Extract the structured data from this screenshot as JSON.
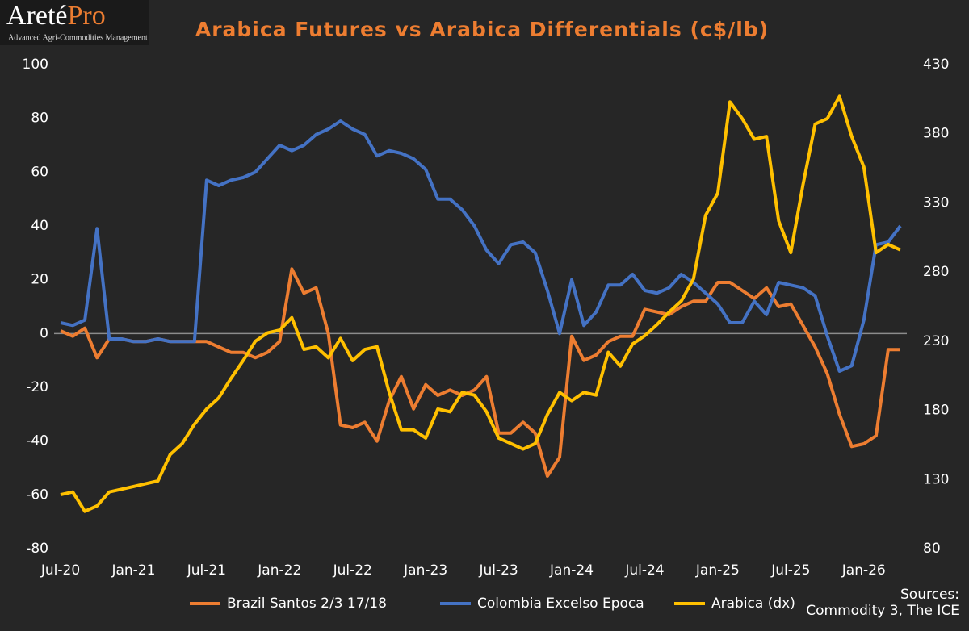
{
  "logo": {
    "name": [
      "Areté",
      "Pro"
    ],
    "tagline": "Advanced Agri-Commodities Management"
  },
  "chart_data": {
    "type": "line",
    "title": "Arabica Futures vs Arabica Differentials (c$/lb)",
    "sources": [
      "Sources:",
      "Commodity 3, The ICE"
    ],
    "categories": [
      "Jul-20",
      null,
      null,
      null,
      null,
      null,
      "Jan-21",
      null,
      null,
      null,
      null,
      null,
      "Jul-21",
      null,
      null,
      null,
      null,
      null,
      "Jan-22",
      null,
      null,
      null,
      null,
      null,
      "Jul-22",
      null,
      null,
      null,
      null,
      null,
      "Jan-23",
      null,
      null,
      null,
      null,
      null,
      "Jul-23",
      null,
      null,
      null,
      null,
      null,
      "Jan-24",
      null,
      null,
      null,
      null,
      null,
      "Jul-24",
      null,
      null,
      null,
      null,
      null,
      "Jan-25",
      null,
      null,
      null,
      null,
      null,
      "Jul-25",
      null,
      null,
      null,
      null,
      null,
      "Jan-26",
      null,
      null,
      null
    ],
    "ylim": [
      -80,
      100
    ],
    "yticks": [
      -80,
      -60,
      -40,
      -20,
      0,
      20,
      40,
      60,
      80,
      100
    ],
    "y2lim": [
      80,
      430
    ],
    "y2ticks": [
      80,
      130,
      180,
      230,
      280,
      330,
      380,
      430
    ],
    "grid": false,
    "legend": "bottom",
    "series": [
      {
        "name": "Brazil Santos 2/3 17/18",
        "color": "#ed7d31",
        "values": [
          1,
          -1,
          2,
          -9,
          -2,
          -2,
          -3,
          -3,
          -2,
          -3,
          -3,
          -3,
          -3,
          -5,
          -7,
          -7,
          -9,
          -7,
          -3,
          24,
          15,
          17,
          0,
          -34,
          -35,
          -33,
          -40,
          -25,
          -16,
          -28,
          -19,
          -23,
          -21,
          -23,
          -21,
          -16,
          -37,
          -37,
          -33,
          -37,
          -53,
          -46,
          -1,
          -10,
          -8,
          -3,
          -1,
          -1,
          9,
          8,
          7,
          10,
          12,
          12,
          19,
          19,
          16,
          13,
          17,
          10,
          11,
          3,
          -5,
          -15,
          -30,
          -42,
          -41,
          -38,
          -6,
          -6
        ]
      },
      {
        "name": "Colombia Excelso Epoca",
        "color": "#4472c4",
        "values": [
          4,
          3,
          5,
          39,
          -2,
          -2,
          -3,
          -3,
          -2,
          -3,
          -3,
          -3,
          57,
          55,
          57,
          58,
          60,
          65,
          70,
          68,
          70,
          74,
          76,
          79,
          76,
          74,
          66,
          68,
          67,
          65,
          61,
          50,
          50,
          46,
          40,
          31,
          26,
          33,
          34,
          30,
          16,
          0,
          20,
          3,
          8,
          18,
          18,
          22,
          16,
          15,
          17,
          22,
          19,
          15,
          11,
          4,
          4,
          12,
          7,
          19,
          18,
          17,
          14,
          -1,
          -14,
          -12,
          5,
          33,
          34,
          40
        ]
      },
      {
        "name": "Arabica (dx)",
        "color": "#ffc000",
        "axis": "y2",
        "values": [
          119,
          121,
          107,
          111,
          121,
          123,
          125,
          127,
          129,
          148,
          156,
          170,
          181,
          189,
          203,
          216,
          230,
          236,
          238,
          247,
          224,
          226,
          218,
          232,
          216,
          224,
          226,
          193,
          166,
          166,
          160,
          181,
          179,
          193,
          191,
          179,
          160,
          156,
          152,
          156,
          177,
          193,
          187,
          193,
          191,
          222,
          212,
          228,
          234,
          242,
          251,
          259,
          275,
          321,
          337,
          403,
          391,
          376,
          378,
          317,
          294,
          343,
          387,
          391,
          407,
          378,
          356,
          294,
          300,
          296
        ]
      }
    ]
  }
}
